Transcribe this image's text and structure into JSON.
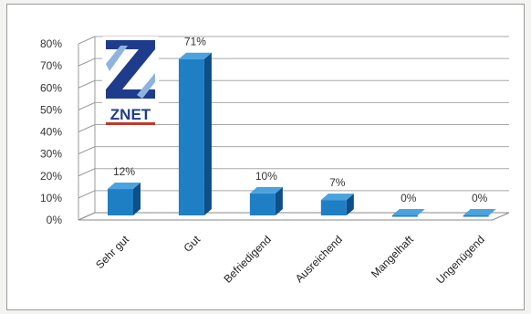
{
  "chart_data": {
    "type": "bar",
    "categories": [
      "Sehr gut",
      "Gut",
      "Befriedigend",
      "Ausreichend",
      "Mangelhaft",
      "Ungenügend"
    ],
    "values": [
      12,
      71,
      10,
      7,
      0,
      0
    ],
    "value_labels": [
      "12%",
      "71%",
      "10%",
      "7%",
      "0%",
      "0%"
    ],
    "yticks": [
      "0%",
      "10%",
      "20%",
      "30%",
      "40%",
      "50%",
      "60%",
      "70%",
      "80%"
    ],
    "ylim": [
      0,
      80
    ],
    "grid": true,
    "legend": "none",
    "bar_color": "#1f7fc4",
    "bar_side_color": "#0d4f86",
    "bar_top_color": "#4aa2de"
  },
  "logo": {
    "text": "ZNET",
    "color": "#1f3c8c"
  }
}
